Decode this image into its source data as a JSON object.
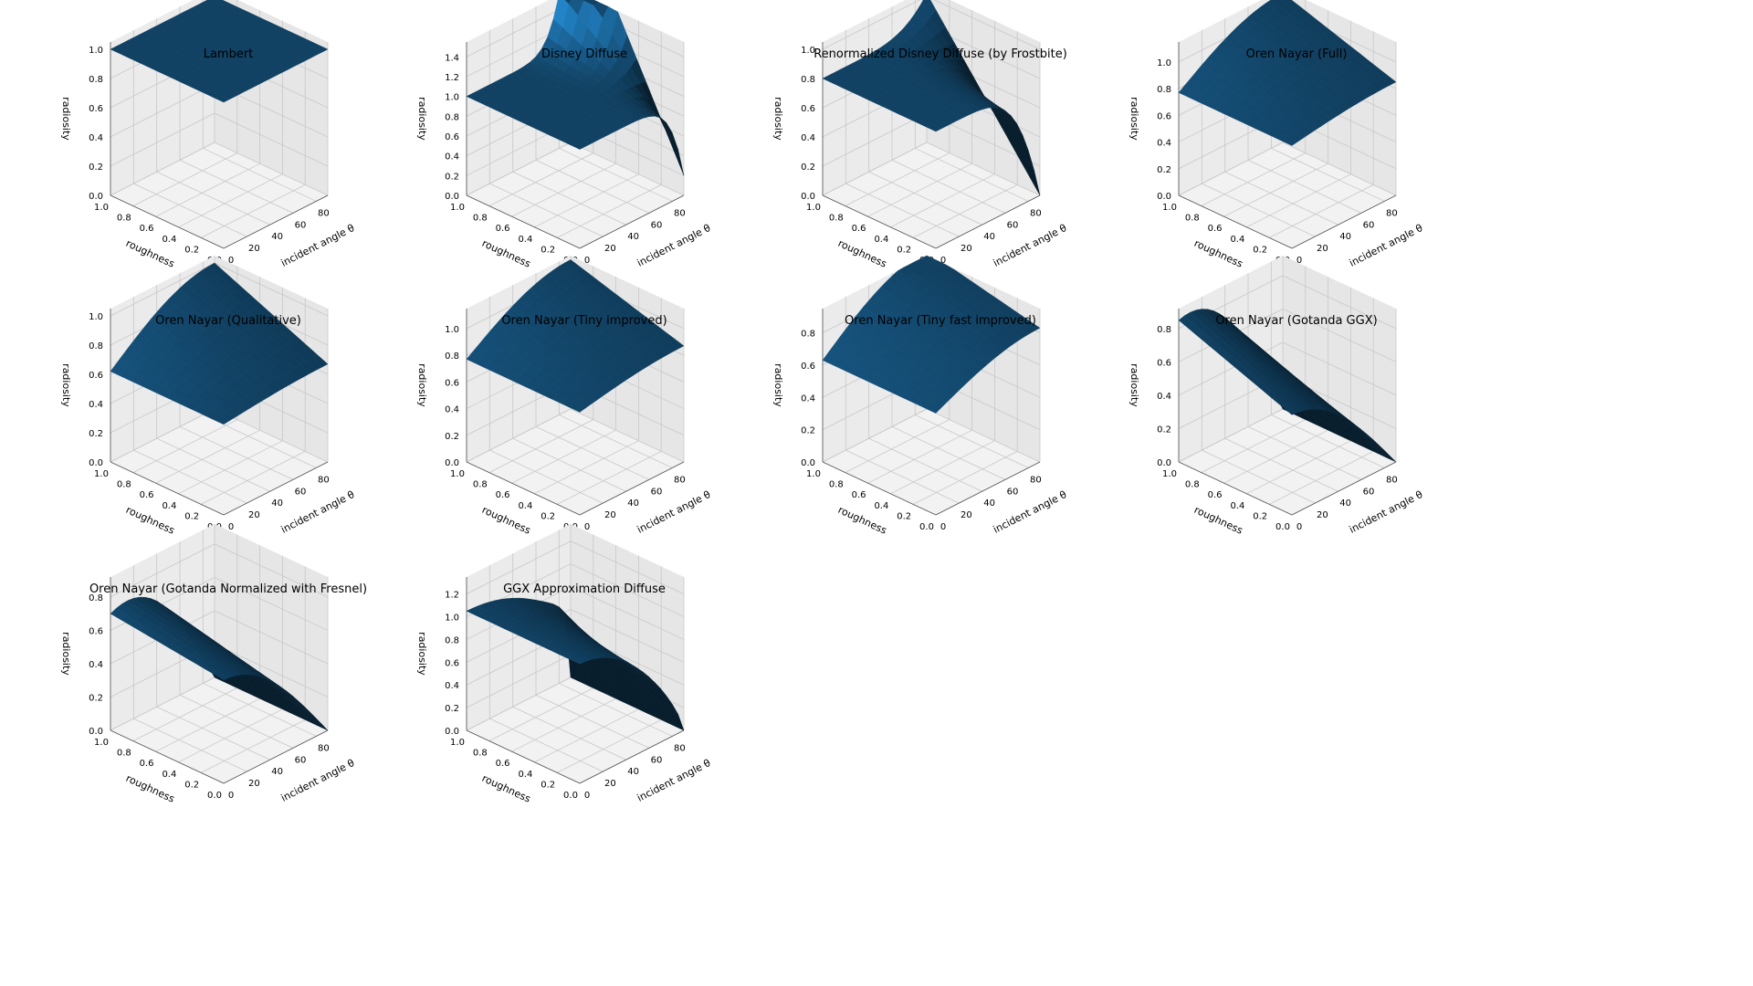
{
  "chart_data": [
    {
      "type": "surface",
      "title": "Lambert",
      "xlabel": "incident angle θ",
      "ylabel": "roughness",
      "zlabel": "radiosity",
      "xlim": [
        0,
        90
      ],
      "ylim": [
        0,
        1
      ],
      "zlim": [
        0,
        1.05
      ],
      "xticks": [
        "0",
        "20",
        "40",
        "60",
        "80"
      ],
      "yticks": [
        "0.0",
        "0.2",
        "0.4",
        "0.6",
        "0.8",
        "1.0"
      ],
      "zticks": [
        "0.0",
        "0.2",
        "0.4",
        "0.6",
        "0.8",
        "1.0"
      ],
      "model": "lambert",
      "color": "#1f77b4"
    },
    {
      "type": "surface",
      "title": "Disney Diffuse",
      "xlabel": "incident angle θ",
      "ylabel": "roughness",
      "zlabel": "radiosity",
      "xlim": [
        0,
        90
      ],
      "ylim": [
        0,
        1
      ],
      "zlim": [
        0,
        1.55
      ],
      "xticks": [
        "0",
        "20",
        "40",
        "60",
        "80"
      ],
      "yticks": [
        "0.0",
        "0.2",
        "0.4",
        "0.6",
        "0.8",
        "1.0"
      ],
      "zticks": [
        "0.0",
        "0.2",
        "0.4",
        "0.6",
        "0.8",
        "1.0",
        "1.2",
        "1.4"
      ],
      "model": "disney",
      "color": "#1f77b4"
    },
    {
      "type": "surface",
      "title": "Renormalized Disney Diffuse (by Frostbite)",
      "xlabel": "incident angle θ",
      "ylabel": "roughness",
      "zlabel": "radiosity",
      "xlim": [
        0,
        90
      ],
      "ylim": [
        0,
        1
      ],
      "zlim": [
        0,
        1.05
      ],
      "xticks": [
        "0",
        "20",
        "40",
        "60",
        "80"
      ],
      "yticks": [
        "0.0",
        "0.2",
        "0.4",
        "0.6",
        "0.8",
        "1.0"
      ],
      "zticks": [
        "0.0",
        "0.2",
        "0.4",
        "0.6",
        "0.8",
        "1.0"
      ],
      "model": "frostbite",
      "color": "#1f77b4"
    },
    {
      "type": "surface",
      "title": "Oren Nayar (Full)",
      "xlabel": "incident angle θ",
      "ylabel": "roughness",
      "zlabel": "radiosity",
      "xlim": [
        0,
        90
      ],
      "ylim": [
        0,
        1
      ],
      "zlim": [
        0,
        1.15
      ],
      "xticks": [
        "0",
        "20",
        "40",
        "60",
        "80"
      ],
      "yticks": [
        "0.0",
        "0.2",
        "0.4",
        "0.6",
        "0.8",
        "1.0"
      ],
      "zticks": [
        "0.0",
        "0.2",
        "0.4",
        "0.6",
        "0.8",
        "1.0"
      ],
      "model": "on_full",
      "color": "#1f77b4"
    },
    {
      "type": "surface",
      "title": "Oren Nayar (Qualitative)",
      "xlabel": "incident angle θ",
      "ylabel": "roughness",
      "zlabel": "radiosity",
      "xlim": [
        0,
        90
      ],
      "ylim": [
        0,
        1
      ],
      "zlim": [
        0,
        1.05
      ],
      "xticks": [
        "0",
        "20",
        "40",
        "60",
        "80"
      ],
      "yticks": [
        "0.0",
        "0.2",
        "0.4",
        "0.6",
        "0.8",
        "1.0"
      ],
      "zticks": [
        "0.0",
        "0.2",
        "0.4",
        "0.6",
        "0.8",
        "1.0"
      ],
      "model": "on_qual",
      "color": "#1f77b4"
    },
    {
      "type": "surface",
      "title": "Oren Nayar (Tiny improved)",
      "xlabel": "incident angle θ",
      "ylabel": "roughness",
      "zlabel": "radiosity",
      "xlim": [
        0,
        90
      ],
      "ylim": [
        0,
        1
      ],
      "zlim": [
        0,
        1.15
      ],
      "xticks": [
        "0",
        "20",
        "40",
        "60",
        "80"
      ],
      "yticks": [
        "0.0",
        "0.2",
        "0.4",
        "0.6",
        "0.8",
        "1.0"
      ],
      "zticks": [
        "0.0",
        "0.2",
        "0.4",
        "0.6",
        "0.8",
        "1.0"
      ],
      "model": "on_tiny",
      "color": "#1f77b4"
    },
    {
      "type": "surface",
      "title": "Oren Nayar (Tiny fast improved)",
      "xlabel": "incident angle θ",
      "ylabel": "roughness",
      "zlabel": "radiosity",
      "xlim": [
        0,
        90
      ],
      "ylim": [
        0,
        1
      ],
      "zlim": [
        0,
        0.95
      ],
      "xticks": [
        "0",
        "20",
        "40",
        "60",
        "80"
      ],
      "yticks": [
        "0.0",
        "0.2",
        "0.4",
        "0.6",
        "0.8",
        "1.0"
      ],
      "zticks": [
        "0.0",
        "0.2",
        "0.4",
        "0.6",
        "0.8"
      ],
      "model": "on_tinyfast",
      "color": "#1f77b4"
    },
    {
      "type": "surface",
      "title": "Oren Nayar (Gotanda GGX)",
      "xlabel": "incident angle θ",
      "ylabel": "roughness",
      "zlabel": "radiosity",
      "xlim": [
        0,
        90
      ],
      "ylim": [
        0,
        1
      ],
      "zlim": [
        0,
        0.92
      ],
      "xticks": [
        "0",
        "20",
        "40",
        "60",
        "80"
      ],
      "yticks": [
        "0.0",
        "0.2",
        "0.4",
        "0.6",
        "0.8",
        "1.0"
      ],
      "zticks": [
        "0.0",
        "0.2",
        "0.4",
        "0.6",
        "0.8"
      ],
      "model": "on_ggx",
      "color": "#1f77b4"
    },
    {
      "type": "surface",
      "title": "Oren Nayar (Gotanda Normalized with Fresnel)",
      "xlabel": "incident angle θ",
      "ylabel": "roughness",
      "zlabel": "radiosity",
      "xlim": [
        0,
        90
      ],
      "ylim": [
        0,
        1
      ],
      "zlim": [
        0,
        0.92
      ],
      "xticks": [
        "0",
        "20",
        "40",
        "60",
        "80"
      ],
      "yticks": [
        "0.0",
        "0.2",
        "0.4",
        "0.6",
        "0.8",
        "1.0"
      ],
      "zticks": [
        "0.0",
        "0.2",
        "0.4",
        "0.6",
        "0.8"
      ],
      "model": "on_fresnel",
      "color": "#1f77b4"
    },
    {
      "type": "surface",
      "title": "GGX Approximation Diffuse",
      "xlabel": "incident angle θ",
      "ylabel": "roughness",
      "zlabel": "radiosity",
      "xlim": [
        0,
        90
      ],
      "ylim": [
        0,
        1
      ],
      "zlim": [
        0,
        1.35
      ],
      "xticks": [
        "0",
        "20",
        "40",
        "60",
        "80"
      ],
      "yticks": [
        "0.0",
        "0.2",
        "0.4",
        "0.6",
        "0.8",
        "1.0"
      ],
      "zticks": [
        "0.0",
        "0.2",
        "0.4",
        "0.6",
        "0.8",
        "1.0",
        "1.2"
      ],
      "model": "ggx_approx",
      "color": "#1f77b4"
    }
  ]
}
